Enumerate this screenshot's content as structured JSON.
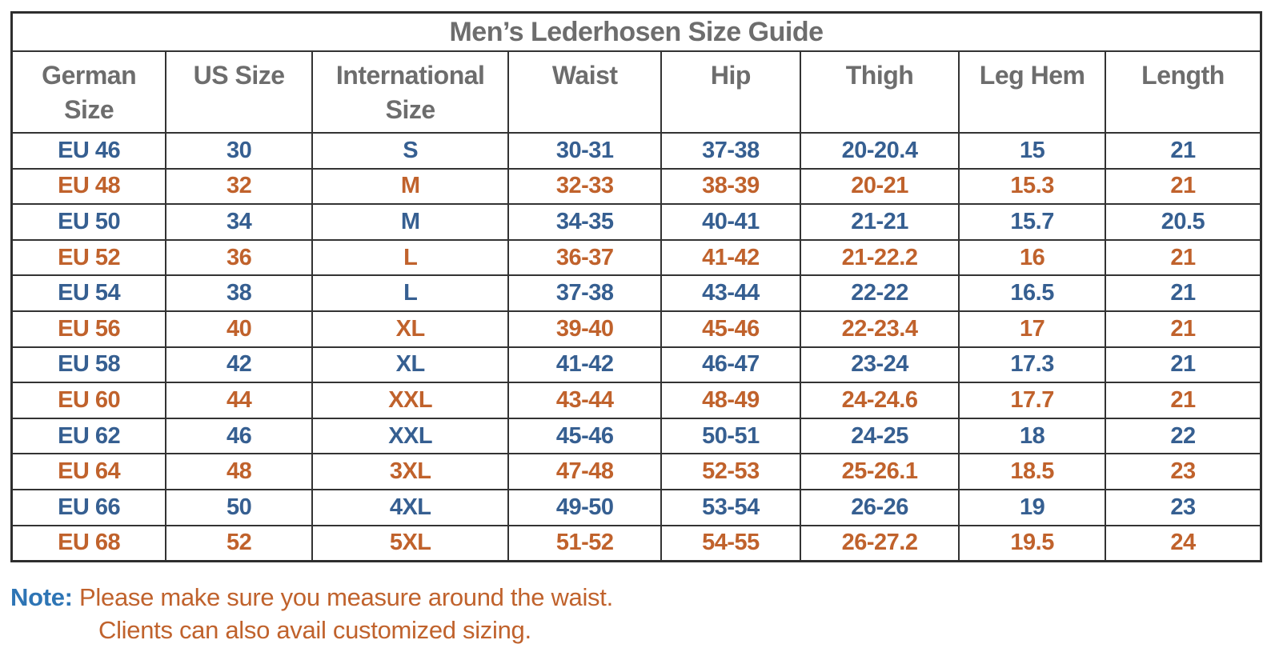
{
  "title": "Men’s Lederhosen Size Guide",
  "columns_display": [
    "German\nSize",
    "US Size",
    "International\nSize",
    "Waist",
    "Hip",
    "Thigh",
    "Leg Hem",
    "Length"
  ],
  "row_colors": [
    "blue",
    "orange",
    "blue",
    "orange",
    "blue",
    "orange",
    "blue",
    "orange",
    "blue",
    "orange",
    "blue",
    "orange"
  ],
  "note": {
    "label": "Note:",
    "line1": "Please make sure you measure around the waist.",
    "line2": "Clients can also avail customized sizing."
  },
  "colors": {
    "header_text_gray": "#6d6d6d",
    "row_text_blue": "#365f91",
    "row_text_orange": "#c0622c",
    "note_label_blue": "#2e75b5",
    "table_border": "#333333",
    "background": "#ffffff"
  },
  "chart_data": {
    "type": "table",
    "title": "Men’s Lederhosen Size Guide",
    "columns": [
      "German Size",
      "US Size",
      "International Size",
      "Waist",
      "Hip",
      "Thigh",
      "Leg Hem",
      "Length"
    ],
    "rows": [
      [
        "EU 46",
        "30",
        "S",
        "30-31",
        "37-38",
        "20-20.4",
        "15",
        "21"
      ],
      [
        "EU 48",
        "32",
        "M",
        "32-33",
        "38-39",
        "20-21",
        "15.3",
        "21"
      ],
      [
        "EU 50",
        "34",
        "M",
        "34-35",
        "40-41",
        "21-21",
        "15.7",
        "20.5"
      ],
      [
        "EU 52",
        "36",
        "L",
        "36-37",
        "41-42",
        "21-22.2",
        "16",
        "21"
      ],
      [
        "EU 54",
        "38",
        "L",
        "37-38",
        "43-44",
        "22-22",
        "16.5",
        "21"
      ],
      [
        "EU 56",
        "40",
        "XL",
        "39-40",
        "45-46",
        "22-23.4",
        "17",
        "21"
      ],
      [
        "EU 58",
        "42",
        "XL",
        "41-42",
        "46-47",
        "23-24",
        "17.3",
        "21"
      ],
      [
        "EU 60",
        "44",
        "XXL",
        "43-44",
        "48-49",
        "24-24.6",
        "17.7",
        "21"
      ],
      [
        "EU 62",
        "46",
        "XXL",
        "45-46",
        "50-51",
        "24-25",
        "18",
        "22"
      ],
      [
        "EU 64",
        "48",
        "3XL",
        "47-48",
        "52-53",
        "25-26.1",
        "18.5",
        "23"
      ],
      [
        "EU 66",
        "50",
        "4XL",
        "49-50",
        "53-54",
        "26-26",
        "19",
        "23"
      ],
      [
        "EU 68",
        "52",
        "5XL",
        "51-52",
        "54-55",
        "26-27.2",
        "19.5",
        "24"
      ]
    ],
    "notes": [
      "Please make sure you measure around the waist.",
      "Clients can also avail customized sizing."
    ]
  }
}
